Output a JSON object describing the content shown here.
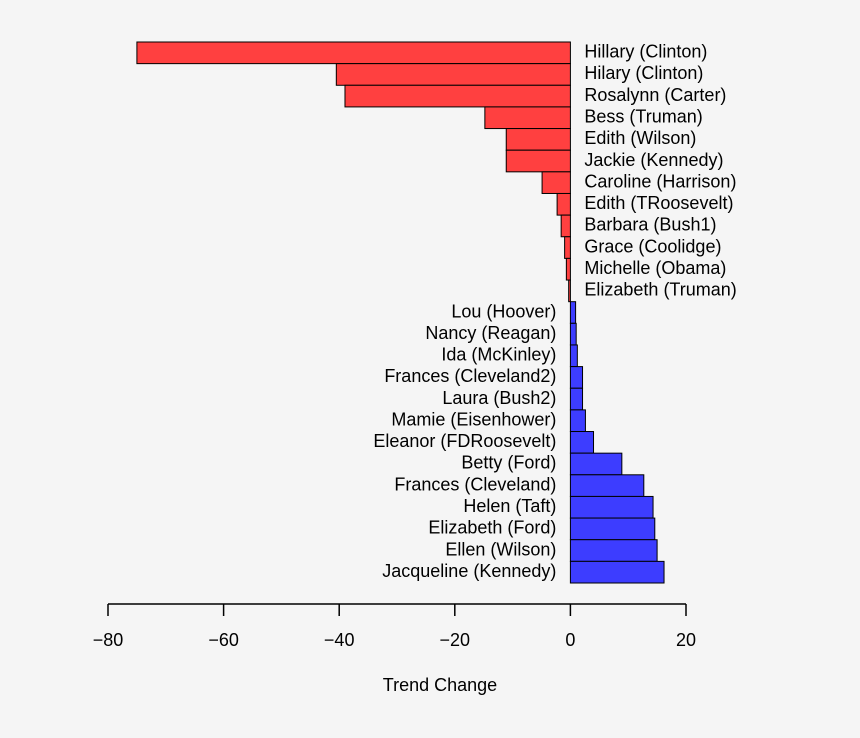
{
  "chart_data": {
    "type": "hbar",
    "xlabel": "Trend Change",
    "categories": [
      "Hillary (Clinton)",
      "Hilary (Clinton)",
      "Rosalynn (Carter)",
      "Bess (Truman)",
      "Edith (Wilson)",
      "Jackie (Kennedy)",
      "Caroline (Harrison)",
      "Edith (TRoosevelt)",
      "Barbara (Bush1)",
      "Grace (Coolidge)",
      "Michelle (Obama)",
      "Elizabeth (Truman)",
      "Lou (Hoover)",
      "Nancy (Reagan)",
      "Ida (McKinley)",
      "Frances (Cleveland2)",
      "Laura (Bush2)",
      "Mamie (Eisenhower)",
      "Eleanor (FDRoosevelt)",
      "Betty (Ford)",
      "Frances (Cleveland)",
      "Helen (Taft)",
      "Elizabeth (Ford)",
      "Ellen (Wilson)",
      "Jacqueline (Kennedy)"
    ],
    "values": [
      -75.0,
      -40.5,
      -39.0,
      -14.8,
      -11.1,
      -11.1,
      -4.9,
      -2.3,
      -1.6,
      -1.0,
      -0.7,
      -0.3,
      0.9,
      1.0,
      1.2,
      2.1,
      2.1,
      2.6,
      4.0,
      8.9,
      12.7,
      14.3,
      14.6,
      15.0,
      16.2
    ],
    "negative_color": "#ff4040",
    "positive_color": "#3d3dff",
    "xlim": [
      -80,
      20
    ],
    "xticks": [
      {
        "value": -80,
        "label": "−80"
      },
      {
        "value": -60,
        "label": "−60"
      },
      {
        "value": -40,
        "label": "−40"
      },
      {
        "value": -20,
        "label": "−20"
      },
      0,
      20
    ]
  }
}
